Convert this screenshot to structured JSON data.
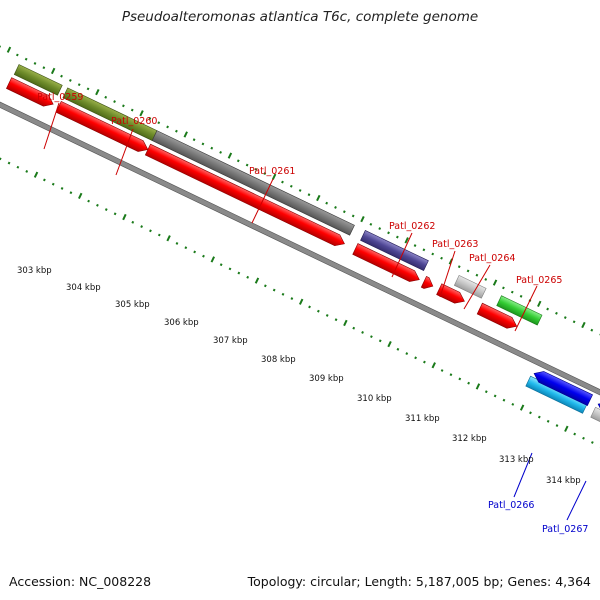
{
  "title": "Pseudoalteromonas atlantica T6c, complete genome",
  "footer": {
    "accession": "Accession: NC_008228",
    "summary": "Topology: circular; Length: 5,187,005 bp; Genes: 4,364"
  },
  "scale_ticks": [
    "303 kbp",
    "304 kbp",
    "305 kbp",
    "306 kbp",
    "307 kbp",
    "308 kbp",
    "309 kbp",
    "310 kbp",
    "311 kbp",
    "312 kbp",
    "313 kbp",
    "314 kbp"
  ],
  "genes": [
    {
      "label": "Patl_0259",
      "color": "#cc0000"
    },
    {
      "label": "Patl_0260",
      "color": "#cc0000"
    },
    {
      "label": "Patl_0261",
      "color": "#cc0000"
    },
    {
      "label": "Patl_0262",
      "color": "#cc0000"
    },
    {
      "label": "Patl_0263",
      "color": "#cc0000"
    },
    {
      "label": "Patl_0264",
      "color": "#cc0000"
    },
    {
      "label": "Patl_0265",
      "color": "#cc0000"
    },
    {
      "label": "Patl_0266",
      "color": "#0000cc"
    },
    {
      "label": "Patl_0267",
      "color": "#0000cc"
    }
  ],
  "colors": {
    "forward_cds": "#ff0000",
    "reverse_cds": "#0000ee",
    "reverse_cds_light": "#00bbee",
    "backbone": "#888888",
    "tick_marks": "#1a7a1a"
  }
}
